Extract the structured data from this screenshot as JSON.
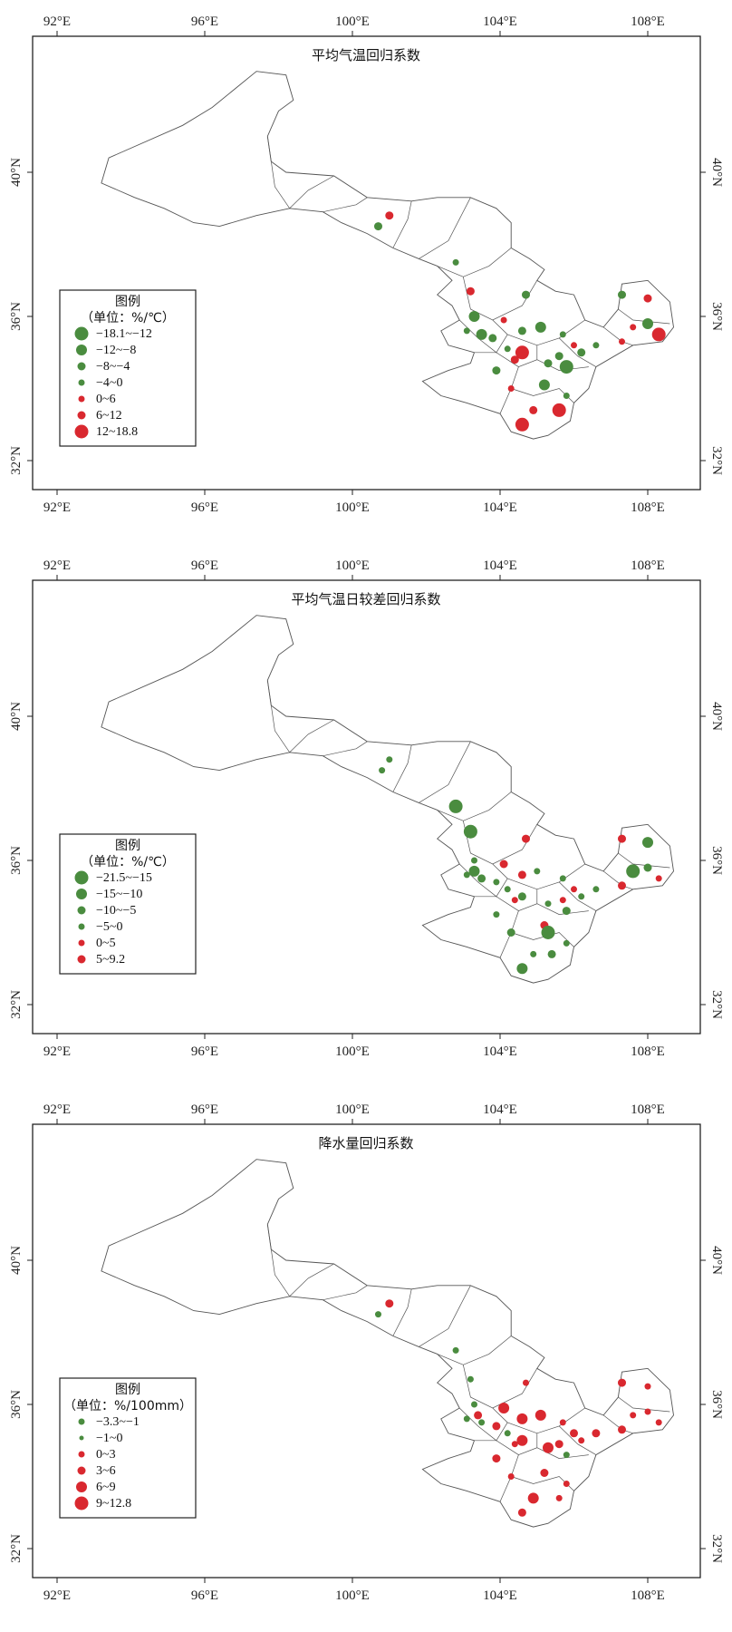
{
  "axis_labels": {
    "x": [
      "92°E",
      "96°E",
      "100°E",
      "104°E",
      "108°E"
    ],
    "y": [
      "40°N",
      "36°N",
      "32°N"
    ]
  },
  "colors": {
    "negative": "#4a8c3f",
    "positive": "#d9282f",
    "boundary": "#555555"
  },
  "maps": [
    {
      "title": "平均气温回归系数",
      "legend_title": "图例",
      "legend_unit": "（单位：%/℃）",
      "legend": [
        {
          "label": "−18.1~−12",
          "sign": "neg",
          "size": 5
        },
        {
          "label": "−12~−8",
          "sign": "neg",
          "size": 4
        },
        {
          "label": "−8~−4",
          "sign": "neg",
          "size": 3
        },
        {
          "label": "−4~0",
          "sign": "neg",
          "size": 2
        },
        {
          "label": "0~6",
          "sign": "pos",
          "size": 2
        },
        {
          "label": "6~12",
          "sign": "pos",
          "size": 3
        },
        {
          "label": "12~18.8",
          "sign": "pos",
          "size": 5
        }
      ],
      "points": [
        {
          "lon": 101.0,
          "lat": 38.8,
          "sign": "pos",
          "size": 3
        },
        {
          "lon": 100.7,
          "lat": 38.5,
          "sign": "neg",
          "size": 3
        },
        {
          "lon": 102.8,
          "lat": 37.5,
          "sign": "neg",
          "size": 2
        },
        {
          "lon": 103.2,
          "lat": 36.7,
          "sign": "pos",
          "size": 3
        },
        {
          "lon": 104.7,
          "lat": 36.6,
          "sign": "neg",
          "size": 3
        },
        {
          "lon": 103.3,
          "lat": 36.0,
          "sign": "neg",
          "size": 4
        },
        {
          "lon": 104.1,
          "lat": 35.9,
          "sign": "pos",
          "size": 2
        },
        {
          "lon": 103.1,
          "lat": 35.6,
          "sign": "neg",
          "size": 2
        },
        {
          "lon": 103.5,
          "lat": 35.5,
          "sign": "neg",
          "size": 4
        },
        {
          "lon": 103.8,
          "lat": 35.4,
          "sign": "neg",
          "size": 3
        },
        {
          "lon": 104.6,
          "lat": 35.6,
          "sign": "neg",
          "size": 3
        },
        {
          "lon": 105.1,
          "lat": 35.7,
          "sign": "neg",
          "size": 4
        },
        {
          "lon": 105.7,
          "lat": 35.5,
          "sign": "neg",
          "size": 2
        },
        {
          "lon": 106.0,
          "lat": 35.2,
          "sign": "pos",
          "size": 2
        },
        {
          "lon": 104.2,
          "lat": 35.1,
          "sign": "neg",
          "size": 2
        },
        {
          "lon": 104.6,
          "lat": 35.0,
          "sign": "pos",
          "size": 5
        },
        {
          "lon": 104.4,
          "lat": 34.8,
          "sign": "pos",
          "size": 3
        },
        {
          "lon": 105.3,
          "lat": 34.7,
          "sign": "neg",
          "size": 3
        },
        {
          "lon": 105.6,
          "lat": 34.9,
          "sign": "neg",
          "size": 3
        },
        {
          "lon": 105.8,
          "lat": 34.6,
          "sign": "neg",
          "size": 5
        },
        {
          "lon": 106.2,
          "lat": 35.0,
          "sign": "neg",
          "size": 3
        },
        {
          "lon": 106.6,
          "lat": 35.2,
          "sign": "neg",
          "size": 2
        },
        {
          "lon": 103.9,
          "lat": 34.5,
          "sign": "neg",
          "size": 3
        },
        {
          "lon": 105.2,
          "lat": 34.1,
          "sign": "neg",
          "size": 4
        },
        {
          "lon": 104.3,
          "lat": 34.0,
          "sign": "pos",
          "size": 2
        },
        {
          "lon": 105.8,
          "lat": 33.8,
          "sign": "neg",
          "size": 2
        },
        {
          "lon": 104.9,
          "lat": 33.4,
          "sign": "pos",
          "size": 3
        },
        {
          "lon": 105.6,
          "lat": 33.4,
          "sign": "pos",
          "size": 5
        },
        {
          "lon": 104.6,
          "lat": 33.0,
          "sign": "pos",
          "size": 5
        },
        {
          "lon": 107.3,
          "lat": 36.6,
          "sign": "neg",
          "size": 3
        },
        {
          "lon": 108.0,
          "lat": 36.5,
          "sign": "pos",
          "size": 3
        },
        {
          "lon": 107.6,
          "lat": 35.7,
          "sign": "pos",
          "size": 2
        },
        {
          "lon": 108.0,
          "lat": 35.8,
          "sign": "neg",
          "size": 4
        },
        {
          "lon": 107.3,
          "lat": 35.3,
          "sign": "pos",
          "size": 2
        },
        {
          "lon": 108.3,
          "lat": 35.5,
          "sign": "pos",
          "size": 5
        }
      ]
    },
    {
      "title": "平均气温日较差回归系数",
      "legend_title": "图例",
      "legend_unit": "（单位：%/℃）",
      "legend": [
        {
          "label": "−21.5~−15",
          "sign": "neg",
          "size": 5
        },
        {
          "label": "−15~−10",
          "sign": "neg",
          "size": 4
        },
        {
          "label": "−10~−5",
          "sign": "neg",
          "size": 3
        },
        {
          "label": "−5~0",
          "sign": "neg",
          "size": 2
        },
        {
          "label": "0~5",
          "sign": "pos",
          "size": 2
        },
        {
          "label": "5~9.2",
          "sign": "pos",
          "size": 3
        }
      ],
      "points": [
        {
          "lon": 101.0,
          "lat": 38.8,
          "sign": "neg",
          "size": 2
        },
        {
          "lon": 100.8,
          "lat": 38.5,
          "sign": "neg",
          "size": 2
        },
        {
          "lon": 102.8,
          "lat": 37.5,
          "sign": "neg",
          "size": 5
        },
        {
          "lon": 103.2,
          "lat": 36.8,
          "sign": "neg",
          "size": 5
        },
        {
          "lon": 104.7,
          "lat": 36.6,
          "sign": "pos",
          "size": 3
        },
        {
          "lon": 103.3,
          "lat": 36.0,
          "sign": "neg",
          "size": 2
        },
        {
          "lon": 104.1,
          "lat": 35.9,
          "sign": "pos",
          "size": 3
        },
        {
          "lon": 103.3,
          "lat": 35.7,
          "sign": "neg",
          "size": 4
        },
        {
          "lon": 103.1,
          "lat": 35.6,
          "sign": "neg",
          "size": 2
        },
        {
          "lon": 103.5,
          "lat": 35.5,
          "sign": "neg",
          "size": 3
        },
        {
          "lon": 103.9,
          "lat": 35.4,
          "sign": "neg",
          "size": 2
        },
        {
          "lon": 104.6,
          "lat": 35.6,
          "sign": "pos",
          "size": 3
        },
        {
          "lon": 105.0,
          "lat": 35.7,
          "sign": "neg",
          "size": 2
        },
        {
          "lon": 105.7,
          "lat": 35.5,
          "sign": "neg",
          "size": 2
        },
        {
          "lon": 106.0,
          "lat": 35.2,
          "sign": "pos",
          "size": 2
        },
        {
          "lon": 104.2,
          "lat": 35.2,
          "sign": "neg",
          "size": 2
        },
        {
          "lon": 104.6,
          "lat": 35.0,
          "sign": "neg",
          "size": 3
        },
        {
          "lon": 104.4,
          "lat": 34.9,
          "sign": "pos",
          "size": 2
        },
        {
          "lon": 105.3,
          "lat": 34.8,
          "sign": "neg",
          "size": 2
        },
        {
          "lon": 105.7,
          "lat": 34.9,
          "sign": "pos",
          "size": 2
        },
        {
          "lon": 105.8,
          "lat": 34.6,
          "sign": "neg",
          "size": 3
        },
        {
          "lon": 106.2,
          "lat": 35.0,
          "sign": "neg",
          "size": 2
        },
        {
          "lon": 106.6,
          "lat": 35.2,
          "sign": "neg",
          "size": 2
        },
        {
          "lon": 103.9,
          "lat": 34.5,
          "sign": "neg",
          "size": 2
        },
        {
          "lon": 104.3,
          "lat": 34.0,
          "sign": "neg",
          "size": 3
        },
        {
          "lon": 105.2,
          "lat": 34.2,
          "sign": "pos",
          "size": 3
        },
        {
          "lon": 105.3,
          "lat": 34.0,
          "sign": "neg",
          "size": 5
        },
        {
          "lon": 105.8,
          "lat": 33.7,
          "sign": "neg",
          "size": 2
        },
        {
          "lon": 105.4,
          "lat": 33.4,
          "sign": "neg",
          "size": 3
        },
        {
          "lon": 104.9,
          "lat": 33.4,
          "sign": "neg",
          "size": 2
        },
        {
          "lon": 104.6,
          "lat": 33.0,
          "sign": "neg",
          "size": 4
        },
        {
          "lon": 107.3,
          "lat": 36.6,
          "sign": "pos",
          "size": 3
        },
        {
          "lon": 108.0,
          "lat": 36.5,
          "sign": "neg",
          "size": 4
        },
        {
          "lon": 107.6,
          "lat": 35.7,
          "sign": "neg",
          "size": 5
        },
        {
          "lon": 108.0,
          "lat": 35.8,
          "sign": "neg",
          "size": 3
        },
        {
          "lon": 107.3,
          "lat": 35.3,
          "sign": "pos",
          "size": 3
        },
        {
          "lon": 108.3,
          "lat": 35.5,
          "sign": "pos",
          "size": 2
        }
      ]
    },
    {
      "title": "降水量回归系数",
      "legend_title": "图例",
      "legend_unit": "（单位：%/100mm）",
      "legend": [
        {
          "label": "−3.3~−1",
          "sign": "neg",
          "size": 2
        },
        {
          "label": "−1~0",
          "sign": "neg",
          "size": 1
        },
        {
          "label": "0~3",
          "sign": "pos",
          "size": 2
        },
        {
          "label": "3~6",
          "sign": "pos",
          "size": 3
        },
        {
          "label": "6~9",
          "sign": "pos",
          "size": 4
        },
        {
          "label": "9~12.8",
          "sign": "pos",
          "size": 5
        }
      ],
      "points": [
        {
          "lon": 101.0,
          "lat": 38.8,
          "sign": "pos",
          "size": 3
        },
        {
          "lon": 100.7,
          "lat": 38.5,
          "sign": "neg",
          "size": 2
        },
        {
          "lon": 102.8,
          "lat": 37.5,
          "sign": "neg",
          "size": 2
        },
        {
          "lon": 103.2,
          "lat": 36.7,
          "sign": "neg",
          "size": 2
        },
        {
          "lon": 104.7,
          "lat": 36.6,
          "sign": "pos",
          "size": 2
        },
        {
          "lon": 103.3,
          "lat": 36.0,
          "sign": "neg",
          "size": 2
        },
        {
          "lon": 104.1,
          "lat": 35.9,
          "sign": "pos",
          "size": 4
        },
        {
          "lon": 103.4,
          "lat": 35.7,
          "sign": "pos",
          "size": 3
        },
        {
          "lon": 103.1,
          "lat": 35.6,
          "sign": "neg",
          "size": 2
        },
        {
          "lon": 103.5,
          "lat": 35.5,
          "sign": "neg",
          "size": 2
        },
        {
          "lon": 103.9,
          "lat": 35.4,
          "sign": "pos",
          "size": 3
        },
        {
          "lon": 104.6,
          "lat": 35.6,
          "sign": "pos",
          "size": 4
        },
        {
          "lon": 105.1,
          "lat": 35.7,
          "sign": "pos",
          "size": 4
        },
        {
          "lon": 105.7,
          "lat": 35.5,
          "sign": "pos",
          "size": 2
        },
        {
          "lon": 106.0,
          "lat": 35.2,
          "sign": "pos",
          "size": 3
        },
        {
          "lon": 104.2,
          "lat": 35.2,
          "sign": "neg",
          "size": 2
        },
        {
          "lon": 104.6,
          "lat": 35.0,
          "sign": "pos",
          "size": 4
        },
        {
          "lon": 104.4,
          "lat": 34.9,
          "sign": "pos",
          "size": 2
        },
        {
          "lon": 105.3,
          "lat": 34.8,
          "sign": "pos",
          "size": 4
        },
        {
          "lon": 105.6,
          "lat": 34.9,
          "sign": "pos",
          "size": 3
        },
        {
          "lon": 105.8,
          "lat": 34.6,
          "sign": "neg",
          "size": 2
        },
        {
          "lon": 106.2,
          "lat": 35.0,
          "sign": "pos",
          "size": 2
        },
        {
          "lon": 106.6,
          "lat": 35.2,
          "sign": "pos",
          "size": 3
        },
        {
          "lon": 103.9,
          "lat": 34.5,
          "sign": "pos",
          "size": 3
        },
        {
          "lon": 105.2,
          "lat": 34.1,
          "sign": "pos",
          "size": 3
        },
        {
          "lon": 104.3,
          "lat": 34.0,
          "sign": "pos",
          "size": 2
        },
        {
          "lon": 105.8,
          "lat": 33.8,
          "sign": "pos",
          "size": 2
        },
        {
          "lon": 104.9,
          "lat": 33.4,
          "sign": "pos",
          "size": 4
        },
        {
          "lon": 105.6,
          "lat": 33.4,
          "sign": "pos",
          "size": 2
        },
        {
          "lon": 104.6,
          "lat": 33.0,
          "sign": "pos",
          "size": 3
        },
        {
          "lon": 107.3,
          "lat": 36.6,
          "sign": "pos",
          "size": 3
        },
        {
          "lon": 108.0,
          "lat": 36.5,
          "sign": "pos",
          "size": 2
        },
        {
          "lon": 107.6,
          "lat": 35.7,
          "sign": "pos",
          "size": 2
        },
        {
          "lon": 108.0,
          "lat": 35.8,
          "sign": "pos",
          "size": 2
        },
        {
          "lon": 107.3,
          "lat": 35.3,
          "sign": "pos",
          "size": 3
        },
        {
          "lon": 108.3,
          "lat": 35.5,
          "sign": "pos",
          "size": 2
        }
      ]
    }
  ]
}
